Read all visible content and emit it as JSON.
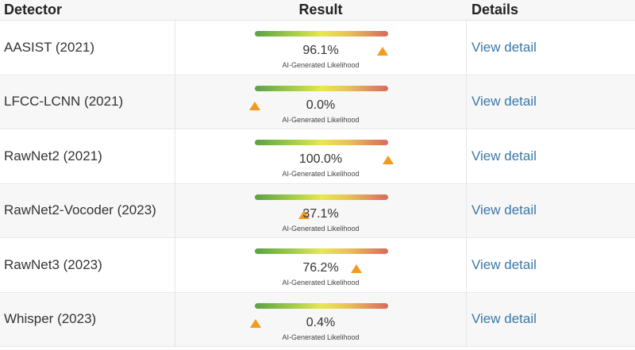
{
  "header": {
    "detector": "Detector",
    "result": "Result",
    "details": "Details"
  },
  "colors": {
    "gauge_start": "#5aa244",
    "gauge_mid": "#e8e84c",
    "gauge_end": "#d86a5e",
    "marker": "#f19b1c",
    "link": "#3a78a8"
  },
  "rows": [
    {
      "detector": "AASIST (2021)",
      "value": 96.1,
      "percent": "96.1%",
      "sublabel": "AI-Generated Likelihood",
      "details": "View detail"
    },
    {
      "detector": "LFCC-LCNN (2021)",
      "value": 0.0,
      "percent": "0.0%",
      "sublabel": "AI-Generated Likelihood",
      "details": "View detail"
    },
    {
      "detector": "RawNet2 (2021)",
      "value": 100.0,
      "percent": "100.0%",
      "sublabel": "AI-Generated Likelihood",
      "details": "View detail"
    },
    {
      "detector": "RawNet2-Vocoder (2023)",
      "value": 37.1,
      "percent": "37.1%",
      "sublabel": "AI-Generated Likelihood",
      "details": "View detail"
    },
    {
      "detector": "RawNet3 (2023)",
      "value": 76.2,
      "percent": "76.2%",
      "sublabel": "AI-Generated Likelihood",
      "details": "View detail"
    },
    {
      "detector": "Whisper (2023)",
      "value": 0.4,
      "percent": "0.4%",
      "sublabel": "AI-Generated Likelihood",
      "details": "View detail"
    }
  ]
}
